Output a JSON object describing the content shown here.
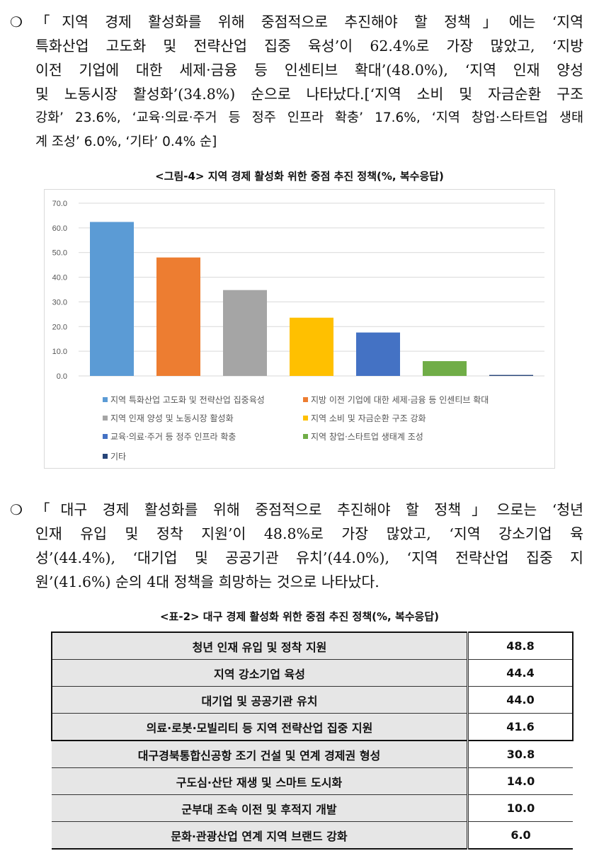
{
  "bullet_symbol": "❍",
  "para1": {
    "lines": [
      "「지역 경제 활성화를 위해 중점적으로 추진해야 할 정책」에는 ‘지역",
      "특화산업 고도화 및 전략산업 집중 육성’이 62.4%로 가장 많았고, ‘지방",
      "이전 기업에 대한 세제·금융 등 인센티브 확대’(48.0%), ‘지역 인재 양성",
      "및 노동시장 활성화’(34.8%) 순으로 나타났다.[‘지역 소비 및 자금순환 구조",
      "강화’ 23.6%, ‘교육·의료·주거 등 정주 인프라 확충’ 17.6%, ‘지역 창업·스타트업 생태",
      "계 조성’ 6.0%, ‘기타’ 0.4% 순]"
    ]
  },
  "figure_caption": "<그림-4> 지역 경제 활성화 위한 중점 추진 정책(%, 복수응답)",
  "chart_data": {
    "type": "bar",
    "categories": [
      "지역 특화산업 고도화 및 전략산업 집중육성",
      "지방 이전 기업에 대한 세제·금융 등 인센티브 확대",
      "지역 인재 양성 및 노동시장 활성화",
      "지역 소비 및 자금순환 구조 강화",
      "교육·의료·주거 등 정주 인프라 확충",
      "지역 창업·스타트업 생태계 조성",
      "기타"
    ],
    "values": [
      62.4,
      48.0,
      34.8,
      23.6,
      17.6,
      6.0,
      0.4
    ],
    "colors": [
      "#5b9bd5",
      "#ed7d31",
      "#a5a5a5",
      "#ffc000",
      "#4472c4",
      "#70ad47",
      "#264478"
    ],
    "ylim": [
      0,
      70
    ],
    "yticks": [
      "0.0",
      "10.0",
      "20.0",
      "30.0",
      "40.0",
      "50.0",
      "60.0",
      "70.0"
    ],
    "grid": true,
    "legend_position": "bottom"
  },
  "para2": {
    "lines": [
      "「대구 경제 활성화를 위해 중점적으로 추진해야 할 정책」으로는 ‘청년",
      "인재 유입 및 정착 지원’이 48.8%로 가장 많았고, ‘지역 강소기업 육",
      "성’(44.4%), ‘대기업 및 공공기관 유치’(44.0%), ‘지역 전략산업 집중 지",
      "원’(41.6%) 순의 4대 정책을 희망하는 것으로 나타났다."
    ]
  },
  "table_caption": "<표-2> 대구 경제 활성화 위한 중점 추진 정책(%, 복수응답)",
  "table": {
    "rows": [
      {
        "label": "청년 인재  유입 및 정착 지원",
        "value": "48.8"
      },
      {
        "label": "지역 강소기업 육성",
        "value": "44.4"
      },
      {
        "label": "대기업 및 공공기관 유치",
        "value": "44.0"
      },
      {
        "label": "의료·로봇·모빌리티 등 지역 전략산업 집중 지원",
        "value": "41.6"
      },
      {
        "label": "대구경북통합신공항 조기 건설 및 연계 경제권 형성",
        "value": "30.8"
      },
      {
        "label": "구도심·산단 재생 및 스마트 도시화",
        "value": "14.0"
      },
      {
        "label": "군부대 조속 이전 및 후적지 개발",
        "value": "10.0"
      },
      {
        "label": "문화·관광산업 연계 지역 브랜드 강화",
        "value": "6.0"
      }
    ]
  }
}
